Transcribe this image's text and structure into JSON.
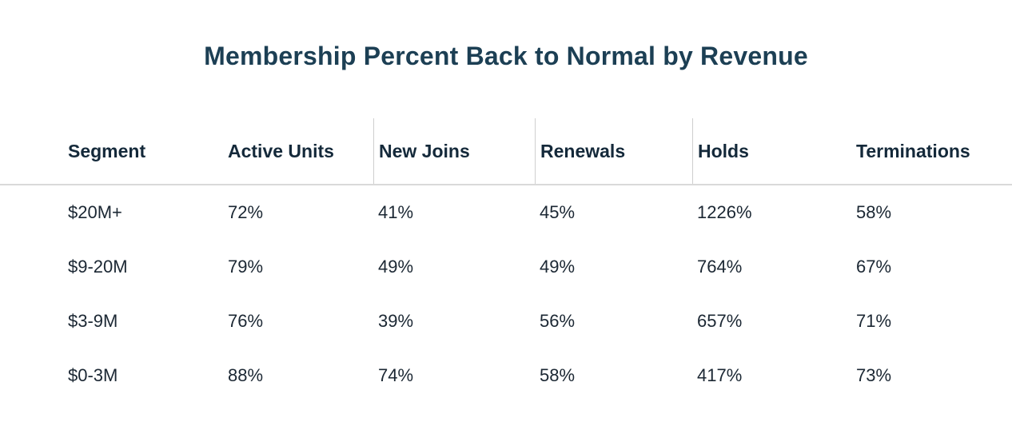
{
  "title": "Membership Percent Back to Normal by Revenue",
  "chart_data": {
    "type": "table",
    "title": "Membership Percent Back to Normal by Revenue",
    "columns": [
      "Segment",
      "Active Units",
      "New Joins",
      "Renewals",
      "Holds",
      "Terminations"
    ],
    "rows": [
      [
        "$20M+",
        "72%",
        "41%",
        "45%",
        "1226%",
        "58%"
      ],
      [
        "$9-20M",
        "79%",
        "49%",
        "49%",
        "764%",
        "67%"
      ],
      [
        "$3-9M",
        "76%",
        "39%",
        "56%",
        "657%",
        "71%"
      ],
      [
        "$0-3M",
        "88%",
        "74%",
        "58%",
        "417%",
        "73%"
      ]
    ],
    "layout": {
      "header_dividers_before_columns": [
        "New Joins",
        "Renewals",
        "Holds"
      ],
      "horizontal_rule_under_header": true
    }
  },
  "colors": {
    "title_text": "#1c3f54",
    "header_text": "#14293a",
    "body_text": "#1b2733",
    "divider": "#d9d9d9",
    "background": "#ffffff"
  }
}
